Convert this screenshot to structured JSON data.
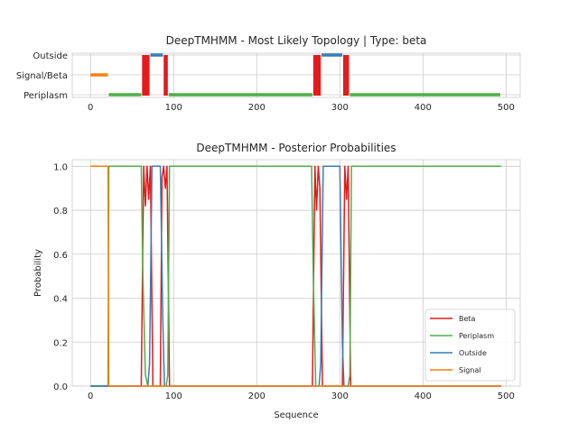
{
  "chart_data": [
    {
      "type": "line",
      "title": "DeepTMHMM - Most Likely Topology | Type: beta",
      "xlabel": "",
      "ylabel": "",
      "xlim": [
        -22,
        517
      ],
      "xticks": [
        0,
        100,
        200,
        300,
        400,
        500
      ],
      "y_categories": [
        "Periplasm",
        "Signal/Beta",
        "Outside"
      ],
      "grid": true,
      "segments": [
        {
          "label": "Signal",
          "color": "#ff7f0e",
          "y": "Signal/Beta",
          "x": [
            0,
            21
          ]
        },
        {
          "label": "Periplasm",
          "color": "#4daf4a",
          "y": "Periplasm",
          "x": [
            22,
            61
          ]
        },
        {
          "label": "Beta",
          "color": "#e41a1c",
          "y": "Signal/Beta",
          "x": [
            62,
            71
          ],
          "span_to": "Outside"
        },
        {
          "label": "Outside",
          "color": "#377eb8",
          "y": "Outside",
          "x": [
            72,
            87
          ]
        },
        {
          "label": "Beta",
          "color": "#e41a1c",
          "y": "Signal/Beta",
          "x": [
            88,
            93
          ],
          "span_to": "Outside"
        },
        {
          "label": "Periplasm",
          "color": "#4daf4a",
          "y": "Periplasm",
          "x": [
            94,
            267
          ]
        },
        {
          "label": "Beta",
          "color": "#e41a1c",
          "y": "Signal/Beta",
          "x": [
            268,
            277
          ],
          "span_to": "Outside"
        },
        {
          "label": "Outside",
          "color": "#377eb8",
          "y": "Outside",
          "x": [
            278,
            303
          ]
        },
        {
          "label": "Beta",
          "color": "#e41a1c",
          "y": "Signal/Beta",
          "x": [
            304,
            311
          ],
          "span_to": "Outside"
        },
        {
          "label": "Periplasm",
          "color": "#4daf4a",
          "y": "Periplasm",
          "x": [
            312,
            493
          ]
        }
      ]
    },
    {
      "type": "line",
      "title": "DeepTMHMM - Posterior Probabilities",
      "xlabel": "Sequence",
      "ylabel": "Probability",
      "xlim": [
        -22,
        517
      ],
      "ylim": [
        0.0,
        1.03
      ],
      "xticks": [
        0,
        100,
        200,
        300,
        400,
        500
      ],
      "yticks": [
        "0.0",
        "0.2",
        "0.4",
        "0.6",
        "0.8",
        "1.0"
      ],
      "grid": true,
      "legend": "lower-right",
      "series": [
        {
          "name": "Beta",
          "color": "#e41a1c",
          "x": [
            0,
            58,
            61,
            64,
            66,
            68,
            70,
            72,
            75,
            84,
            86,
            88,
            90,
            92,
            95,
            264,
            267,
            270,
            272,
            274,
            276,
            279,
            300,
            303,
            306,
            308,
            310,
            313,
            494
          ],
          "y": [
            0,
            0,
            0,
            1,
            0.82,
            1,
            0.85,
            1,
            0,
            0,
            0.95,
            1,
            0.9,
            1,
            0,
            0,
            0,
            1,
            0.8,
            1,
            0.9,
            0,
            0,
            0,
            1,
            0.85,
            1,
            0,
            0
          ]
        },
        {
          "name": "Periplasm",
          "color": "#4daf4a",
          "x": [
            0,
            21,
            22,
            59,
            61,
            63,
            66,
            69,
            72,
            91,
            93,
            95,
            263,
            266,
            268,
            271,
            310,
            312,
            314,
            494
          ],
          "y": [
            0,
            0,
            1,
            1,
            1,
            0.5,
            0.05,
            0,
            0,
            0,
            0.05,
            1,
            1,
            1,
            0.5,
            0,
            0,
            0.05,
            1,
            1
          ]
        },
        {
          "name": "Outside",
          "color": "#377eb8",
          "x": [
            0,
            69,
            71,
            74,
            84,
            87,
            89,
            91,
            275,
            277,
            280,
            300,
            303,
            305,
            307,
            494
          ],
          "y": [
            0,
            0,
            0.1,
            1,
            1,
            0.3,
            0,
            0,
            0,
            0.1,
            1,
            1,
            0.2,
            0,
            0,
            0
          ]
        },
        {
          "name": "Signal",
          "color": "#ff7f0e",
          "x": [
            0,
            20,
            21,
            22,
            494
          ],
          "y": [
            1,
            1,
            1,
            0,
            0
          ]
        }
      ]
    }
  ]
}
